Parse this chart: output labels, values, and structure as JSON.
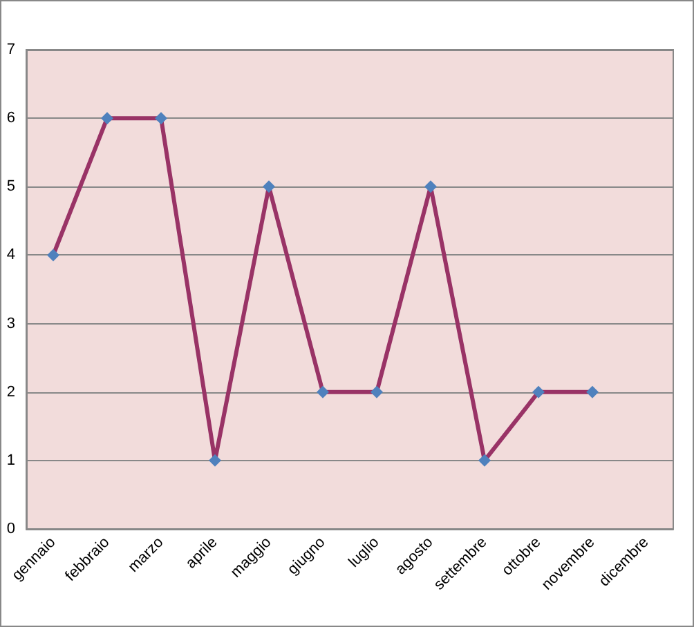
{
  "chart_data": {
    "type": "line",
    "categories": [
      "gennaio",
      "febbraio",
      "marzo",
      "aprile",
      "maggio",
      "giugno",
      "luglio",
      "agosto",
      "settembre",
      "ottobre",
      "novembre",
      "dicembre"
    ],
    "series": [
      {
        "color": "#993366",
        "colors": [
          "#4f81bd",
          "#4f81bd",
          "#4f81bd",
          "#4f81bd",
          "#4f81bd",
          "#4f81bd",
          "#4f81bd",
          "#4f81bd",
          "#4f81bd",
          "#4f81bd",
          "#4f81bd",
          "#4f81bd"
        ],
        "values": [
          4,
          6,
          6,
          1,
          5,
          2,
          2,
          5,
          1,
          2,
          2,
          null
        ]
      }
    ],
    "ylim": [
      0,
      7
    ],
    "yticks": [
      0,
      1,
      2,
      3,
      4,
      5,
      6,
      7
    ],
    "grid": "y",
    "marker": "diamond",
    "line_style": "solid"
  }
}
